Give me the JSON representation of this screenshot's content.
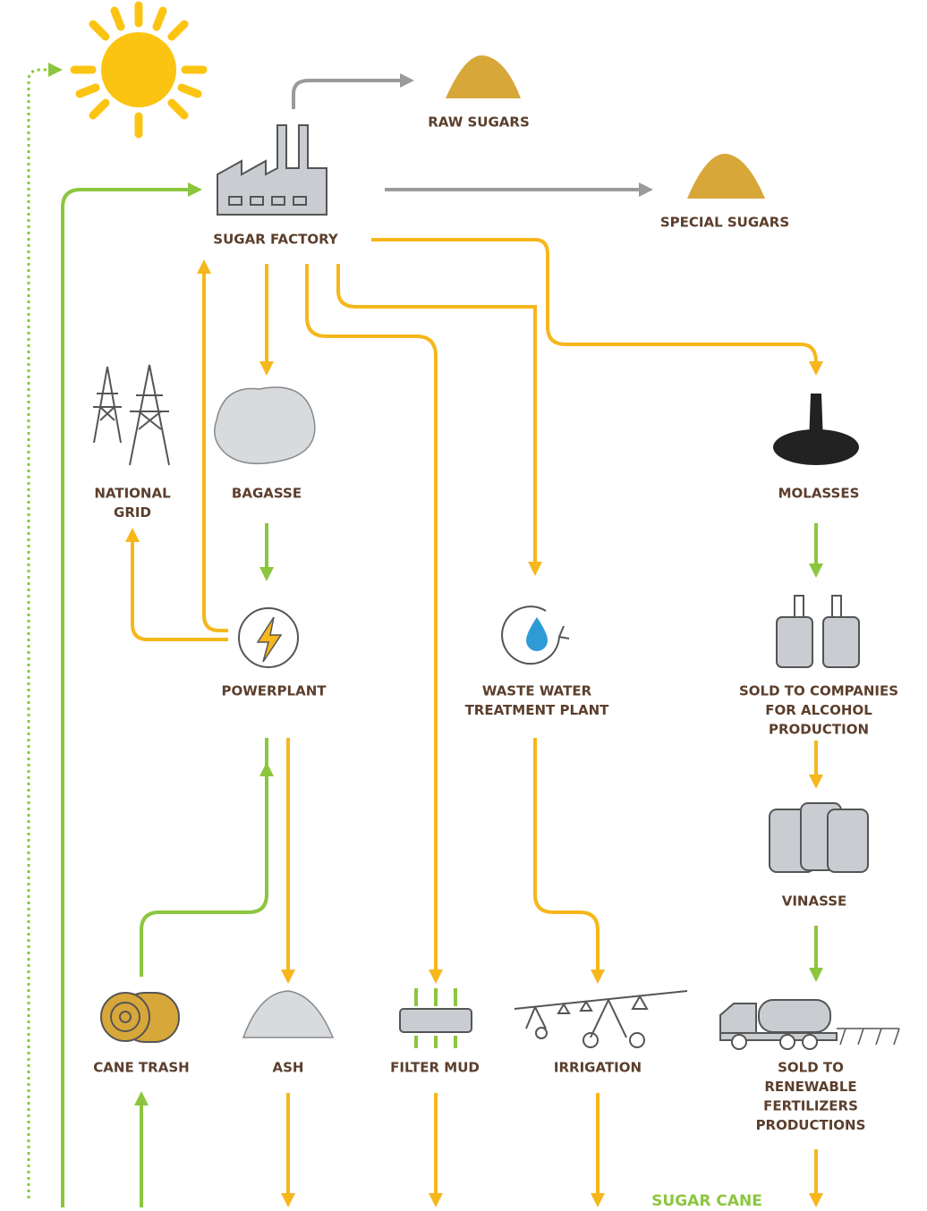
{
  "nodes": [
    {
      "label": [
        "RAW SUGARS"
      ]
    },
    {
      "label": [
        "SUGAR FACTORY"
      ]
    },
    {
      "label": [
        "SPECIAL SUGARS"
      ]
    },
    {
      "label": [
        "NATIONAL",
        "GRID"
      ]
    },
    {
      "label": [
        "BAGASSE"
      ]
    },
    {
      "label": [
        "MOLASSES"
      ]
    },
    {
      "label": [
        "POWERPLANT"
      ]
    },
    {
      "label": [
        "WASTE WATER",
        "TREATMENT PLANT"
      ]
    },
    {
      "label": [
        "SOLD TO COMPANIES",
        "FOR ALCOHOL",
        "PRODUCTION"
      ]
    },
    {
      "label": [
        "VINASSE"
      ]
    },
    {
      "label": [
        "CANE TRASH"
      ]
    },
    {
      "label": [
        "ASH"
      ]
    },
    {
      "label": [
        "FILTER MUD"
      ]
    },
    {
      "label": [
        "IRRIGATION"
      ]
    },
    {
      "label": [
        "SOLD TO",
        "RENEWABLE",
        "FERTILIZERS",
        "PRODUCTIONS"
      ]
    },
    {
      "label": [
        "SUGAR CANE"
      ]
    }
  ]
}
